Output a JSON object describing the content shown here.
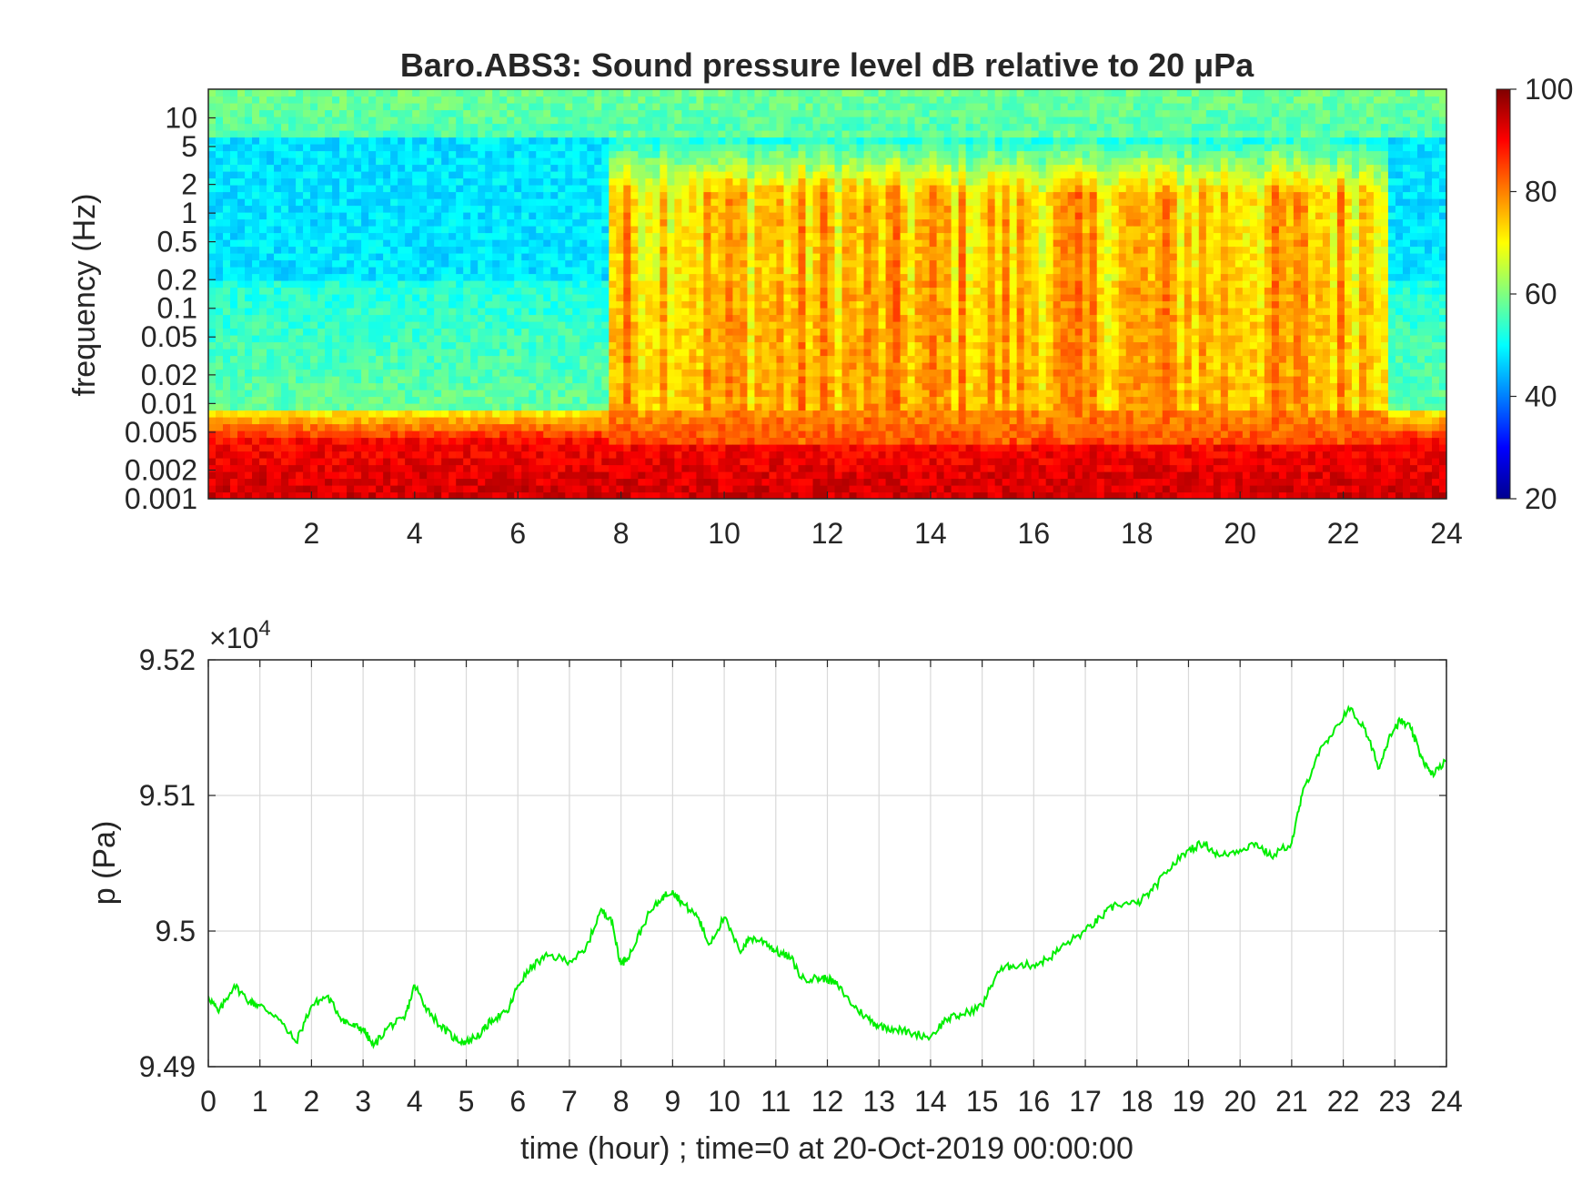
{
  "chart_data": [
    {
      "type": "heatmap",
      "title": "Baro.ABS3: Sound pressure level dB relative to 20 μPa",
      "xlabel": "",
      "ylabel": "frequency (Hz)",
      "x_range_hours": [
        0,
        24
      ],
      "x_ticks": [
        "2",
        "4",
        "6",
        "8",
        "10",
        "12",
        "14",
        "16",
        "18",
        "20",
        "22",
        "24"
      ],
      "y_scale": "log",
      "y_range_hz": [
        0.001,
        20
      ],
      "y_ticks": [
        {
          "value": 10,
          "label": "10"
        },
        {
          "value": 5,
          "label": "5"
        },
        {
          "value": 2,
          "label": "2"
        },
        {
          "value": 1,
          "label": "1"
        },
        {
          "value": 0.5,
          "label": "0.5"
        },
        {
          "value": 0.2,
          "label": "0.2"
        },
        {
          "value": 0.1,
          "label": "0.1"
        },
        {
          "value": 0.05,
          "label": "0.05"
        },
        {
          "value": 0.02,
          "label": "0.02"
        },
        {
          "value": 0.01,
          "label": "0.01"
        },
        {
          "value": 0.005,
          "label": "0.005"
        },
        {
          "value": 0.002,
          "label": "0.002"
        },
        {
          "value": 0.001,
          "label": "0.001"
        }
      ],
      "colormap": "jet",
      "colorbar": {
        "range": [
          20,
          100
        ],
        "ticks": [
          "100",
          "80",
          "60",
          "40",
          "20"
        ]
      },
      "active_period_hours": [
        7.7,
        22.8
      ],
      "note_levels_db": {
        "low_freq_floor": 90,
        "quiet_hf_band": 48,
        "active_mid_band": 82,
        "top_band": 56
      }
    },
    {
      "type": "line",
      "xlabel": "time (hour) ; time=0 at 20-Oct-2019 00:00:00",
      "ylabel": "p (Pa)",
      "y_multiplier_label": "×10",
      "y_multiplier_exp": "4",
      "ylim": [
        94900,
        95200
      ],
      "xlim": [
        0,
        24
      ],
      "grid": true,
      "line_color": "#00ee00",
      "x_ticks": [
        "0",
        "1",
        "2",
        "3",
        "4",
        "5",
        "6",
        "7",
        "8",
        "9",
        "10",
        "11",
        "12",
        "13",
        "14",
        "15",
        "16",
        "17",
        "18",
        "19",
        "20",
        "21",
        "22",
        "23",
        "24"
      ],
      "y_ticks": [
        {
          "value": 95200,
          "label": "9.52"
        },
        {
          "value": 95100,
          "label": "9.51"
        },
        {
          "value": 95000,
          "label": "9.5"
        },
        {
          "value": 94900,
          "label": "9.49"
        }
      ],
      "series": [
        {
          "x": [
            0,
            0.2,
            0.5,
            0.8,
            1.0,
            1.3,
            1.7,
            2.0,
            2.3,
            2.6,
            2.8,
            3.0,
            3.2,
            3.5,
            3.8,
            4.0,
            4.2,
            4.5,
            4.8,
            5.0,
            5.3,
            5.5,
            5.8,
            6.0,
            6.3,
            6.6,
            7.0,
            7.3,
            7.6,
            7.8,
            8.0,
            8.2,
            8.5,
            8.8,
            9.0,
            9.2,
            9.5,
            9.7,
            10.0,
            10.3,
            10.5,
            10.8,
            11.0,
            11.3,
            11.5,
            11.8,
            12.0,
            12.2,
            12.5,
            12.8,
            13.0,
            13.3,
            13.6,
            14.0,
            14.3,
            14.6,
            15.0,
            15.3,
            15.6,
            16.0,
            16.3,
            16.6,
            17.0,
            17.3,
            17.6,
            18.0,
            18.3,
            18.6,
            19.0,
            19.3,
            19.6,
            20.0,
            20.3,
            20.6,
            21.0,
            21.2,
            21.5,
            21.8,
            22.1,
            22.4,
            22.7,
            22.9,
            23.1,
            23.3,
            23.5,
            23.7,
            24.0
          ],
          "y": [
            94952,
            94940,
            94960,
            94948,
            94945,
            94938,
            94918,
            94945,
            94952,
            94935,
            94930,
            94928,
            94915,
            94930,
            94935,
            94960,
            94945,
            94930,
            94920,
            94918,
            94925,
            94935,
            94940,
            94960,
            94975,
            94982,
            94978,
            94985,
            95015,
            95010,
            94975,
            94985,
            95010,
            95025,
            95030,
            95020,
            95010,
            94990,
            95010,
            94985,
            94995,
            94992,
            94985,
            94980,
            94965,
            94965,
            94965,
            94960,
            94945,
            94935,
            94930,
            94928,
            94925,
            94922,
            94935,
            94938,
            94945,
            94970,
            94975,
            94975,
            94980,
            94990,
            95000,
            95010,
            95020,
            95020,
            95030,
            95045,
            95060,
            95065,
            95055,
            95060,
            95065,
            95055,
            95065,
            95100,
            95130,
            95145,
            95165,
            95150,
            95120,
            95145,
            95155,
            95150,
            95130,
            95115,
            95125
          ]
        }
      ]
    }
  ]
}
